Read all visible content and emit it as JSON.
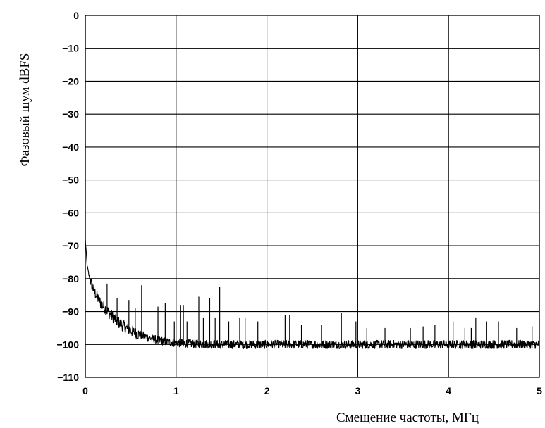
{
  "chart_data": {
    "type": "line",
    "title": "",
    "xlabel": "Смещение частоты, МГц",
    "ylabel": "Фазовый шум dBFS",
    "xlim": [
      0,
      5
    ],
    "ylim": [
      -110,
      0
    ],
    "x_ticks": [
      "0",
      "1",
      "2",
      "3",
      "4",
      "5"
    ],
    "y_ticks": [
      "0",
      "−10",
      "−20",
      "−30",
      "−40",
      "−50",
      "−60",
      "−70",
      "−80",
      "−90",
      "−100",
      "−110"
    ],
    "grid": true,
    "legend": "none",
    "line_color": "#000000",
    "series": [
      {
        "noise_floor_dbfs": -100,
        "points": [
          [
            0.0,
            -68
          ],
          [
            0.02,
            -76
          ],
          [
            0.04,
            -79
          ],
          [
            0.06,
            -81
          ],
          [
            0.08,
            -82.5
          ],
          [
            0.1,
            -84
          ],
          [
            0.13,
            -85.5
          ],
          [
            0.16,
            -87
          ],
          [
            0.2,
            -88.5
          ],
          [
            0.25,
            -90
          ],
          [
            0.3,
            -91.5
          ],
          [
            0.35,
            -93
          ],
          [
            0.4,
            -94
          ],
          [
            0.45,
            -95
          ],
          [
            0.5,
            -95.8
          ],
          [
            0.55,
            -96.5
          ],
          [
            0.6,
            -97
          ],
          [
            0.7,
            -98
          ],
          [
            0.8,
            -98.7
          ],
          [
            0.9,
            -99.2
          ],
          [
            1.0,
            -99.5
          ],
          [
            1.2,
            -99.8
          ],
          [
            1.5,
            -100
          ],
          [
            2.0,
            -100
          ],
          [
            3.0,
            -100
          ],
          [
            4.0,
            -100
          ],
          [
            5.0,
            -100
          ]
        ],
        "spurs": [
          [
            0.24,
            -81.5
          ],
          [
            0.35,
            -86
          ],
          [
            0.48,
            -86.5
          ],
          [
            0.55,
            -89
          ],
          [
            0.62,
            -82
          ],
          [
            0.8,
            -88.5
          ],
          [
            0.88,
            -87.5
          ],
          [
            0.98,
            -93
          ],
          [
            1.05,
            -88
          ],
          [
            1.08,
            -88
          ],
          [
            1.12,
            -93
          ],
          [
            1.25,
            -85.5
          ],
          [
            1.3,
            -92
          ],
          [
            1.37,
            -86
          ],
          [
            1.43,
            -92
          ],
          [
            1.48,
            -82.5
          ],
          [
            1.58,
            -93
          ],
          [
            1.7,
            -92
          ],
          [
            1.76,
            -92
          ],
          [
            1.9,
            -93
          ],
          [
            2.2,
            -91
          ],
          [
            2.25,
            -91
          ],
          [
            2.38,
            -94
          ],
          [
            2.6,
            -94
          ],
          [
            2.82,
            -90.5
          ],
          [
            2.98,
            -93
          ],
          [
            3.1,
            -95
          ],
          [
            3.3,
            -95
          ],
          [
            3.58,
            -95
          ],
          [
            3.72,
            -94.5
          ],
          [
            3.85,
            -94
          ],
          [
            4.05,
            -93
          ],
          [
            4.18,
            -95
          ],
          [
            4.25,
            -95
          ],
          [
            4.3,
            -92
          ],
          [
            4.42,
            -93
          ],
          [
            4.55,
            -93
          ],
          [
            4.75,
            -95
          ],
          [
            4.92,
            -94.5
          ]
        ]
      }
    ]
  }
}
